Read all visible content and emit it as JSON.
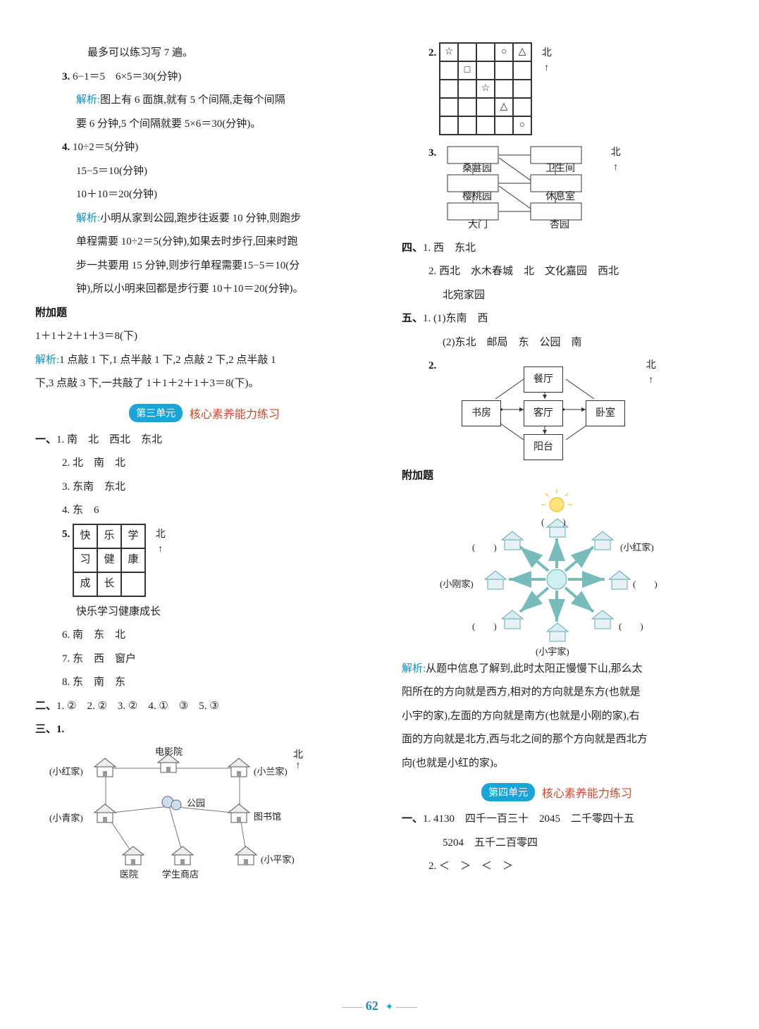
{
  "left": {
    "l1": "最多可以练习写 7 遍。",
    "q3": {
      "num": "3.",
      "eq": "6−1＝5　6×5＝30(分钟)",
      "analysis_label": "解析:",
      "analysis_a": "图上有 6 面旗,就有 5 个间隔,走每个间隔",
      "analysis_b": "要 6 分钟,5 个间隔就要 5×6＝30(分钟)。"
    },
    "q4": {
      "num": "4.",
      "l1": "10÷2＝5(分钟)",
      "l2": "15−5＝10(分钟)",
      "l3": "10＋10＝20(分钟)",
      "analysis_label": "解析:",
      "a1": "小明从家到公园,跑步往返要 10 分钟,则跑步",
      "a2": "单程需要 10÷2＝5(分钟),如果去时步行,回来时跑",
      "a3": "步一共要用 15 分钟,则步行单程需要15−5＝10(分",
      "a4": "钟),所以小明来回都是步行要 10＋10＝20(分钟)。"
    },
    "extra_label": "附加题",
    "extra_eq": "1＋1＋2＋1＋3＝8(下)",
    "extra_an_label": "解析:",
    "extra_an1": "1 点敲 1 下,1 点半敲 1 下,2 点敲 2 下,2 点半敲 1",
    "extra_an2": "下,3 点敲 3 下,一共敲了 1＋1＋2＋1＋3＝8(下)。",
    "unit3_badge": "第三单元",
    "unit3_title": "核心素养能力练习",
    "sec1": {
      "num": "一、",
      "r1": "1. 南　北　西北　东北",
      "r2": "2. 北　南　北",
      "r3": "3. 东南　东北",
      "r4": "4. 东　6",
      "r5num": "5.",
      "grid": [
        [
          "快",
          "乐",
          "学"
        ],
        [
          "习",
          "健",
          "康"
        ],
        [
          "成",
          "长",
          ""
        ]
      ],
      "north": "北",
      "r5b": "快乐学习健康成长",
      "r6": "6. 南　东　北",
      "r7": "7. 东　西　窗户",
      "r8": "8. 东　南　东"
    },
    "sec2": {
      "num": "二、",
      "line": "1. ②　2. ②　3. ②　4. ①　③　5. ③"
    },
    "sec3": {
      "num": "三、",
      "r1": "1.",
      "north": "北",
      "labels": {
        "cinema": "电影院",
        "xiaohong": "(小红家)",
        "xiaolan": "(小兰家)",
        "park": "公园",
        "library": "图书馆",
        "xiaoqing": "(小青家)",
        "xiaoping": "(小平家)",
        "hospital": "医院",
        "shop": "学生商店"
      }
    }
  },
  "right": {
    "q2": {
      "num": "2.",
      "north": "北",
      "grid": [
        [
          "☆",
          "",
          "",
          "○",
          "△"
        ],
        [
          "",
          "□",
          "",
          "",
          ""
        ],
        [
          "",
          "",
          "☆",
          "",
          ""
        ],
        [
          "",
          "",
          "",
          "△",
          ""
        ],
        [
          "",
          "",
          "",
          "",
          "○"
        ]
      ]
    },
    "q3": {
      "num": "3.",
      "north": "北",
      "boxes": {
        "a1": "桑葚园",
        "a2": "卫生间",
        "b1": "樱桃园",
        "b2": "休息室",
        "c1": "大门",
        "c2": "杏园"
      }
    },
    "sec4": {
      "num": "四、",
      "r1": "1. 西　东北",
      "r2a": "2. 西北　水木春城　北　文化嘉园　西北",
      "r2b": "北宛家园"
    },
    "sec5": {
      "num": "五、",
      "r1a": "1. (1)东南　西",
      "r1b": "(2)东北　邮局　东　公园　南",
      "r2": "2.",
      "north": "北",
      "boxes": {
        "top": "餐厅",
        "left": "书房",
        "mid": "客厅",
        "right": "卧室",
        "bottom": "阳台"
      }
    },
    "extra_label": "附加题",
    "sun": {
      "xiaohong": "(小红家)",
      "xiaogang": "(小刚家)",
      "xiaoyu": "(小宇家)",
      "blank": "(　　)"
    },
    "an_label": "解析:",
    "an1": "从题中信息了解到,此时太阳正慢慢下山,那么太",
    "an2": "阳所在的方向就是西方,相对的方向就是东方(也就是",
    "an3": "小宇的家),左面的方向就是南方(也就是小刚的家),右",
    "an4": "面的方向就是北方,西与北之间的那个方向就是西北方",
    "an5": "向(也就是小红的家)。",
    "unit4_badge": "第四单元",
    "unit4_title": "核心素养能力练习",
    "u4_sec1": {
      "num": "一、",
      "r1a": "1. 4130　四千一百三十　2045　二千零四十五",
      "r1b": "5204　五千二百零四",
      "r2": "2. ＜　＞　＜　＞"
    }
  },
  "page": "62"
}
